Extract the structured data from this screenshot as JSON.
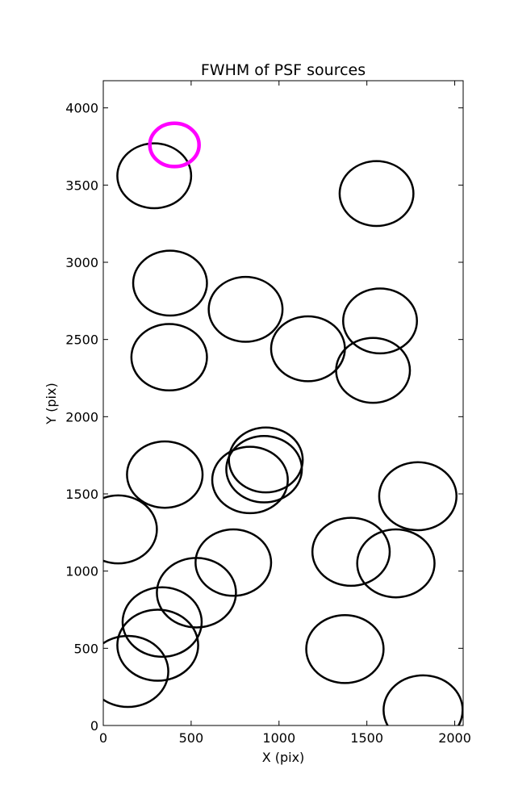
{
  "chart_data": {
    "type": "scatter",
    "title": "FWHM of PSF sources",
    "xlabel": "X (pix)",
    "ylabel": "Y (pix)",
    "xlim": [
      0,
      2048
    ],
    "ylim": [
      0,
      4176
    ],
    "xticks": [
      0,
      500,
      1000,
      1500,
      2000
    ],
    "yticks": [
      0,
      500,
      1000,
      1500,
      2000,
      2500,
      3000,
      3500,
      4000
    ],
    "grid": false,
    "series": [
      {
        "marker": "circle",
        "color": "#000000",
        "points": [
          {
            "x": 290,
            "y": 3560,
            "r": 210
          },
          {
            "x": 1555,
            "y": 3445,
            "r": 210
          },
          {
            "x": 380,
            "y": 2865,
            "r": 210
          },
          {
            "x": 810,
            "y": 2695,
            "r": 210
          },
          {
            "x": 1575,
            "y": 2620,
            "r": 210
          },
          {
            "x": 1165,
            "y": 2440,
            "r": 210
          },
          {
            "x": 375,
            "y": 2385,
            "r": 215
          },
          {
            "x": 1535,
            "y": 2300,
            "r": 210
          },
          {
            "x": 925,
            "y": 1720,
            "r": 210
          },
          {
            "x": 915,
            "y": 1660,
            "r": 215
          },
          {
            "x": 835,
            "y": 1590,
            "r": 215
          },
          {
            "x": 350,
            "y": 1625,
            "r": 215
          },
          {
            "x": 1790,
            "y": 1485,
            "r": 220
          },
          {
            "x": 85,
            "y": 1270,
            "r": 220
          },
          {
            "x": 1410,
            "y": 1125,
            "r": 220
          },
          {
            "x": 1665,
            "y": 1050,
            "r": 220
          },
          {
            "x": 740,
            "y": 1055,
            "r": 215
          },
          {
            "x": 530,
            "y": 860,
            "r": 225
          },
          {
            "x": 335,
            "y": 670,
            "r": 225
          },
          {
            "x": 310,
            "y": 520,
            "r": 230
          },
          {
            "x": 1375,
            "y": 495,
            "r": 220
          },
          {
            "x": 140,
            "y": 350,
            "r": 230
          },
          {
            "x": 1820,
            "y": 100,
            "r": 225
          }
        ]
      },
      {
        "marker": "circle",
        "color": "#ff00ff",
        "points": [
          {
            "x": 405,
            "y": 3760,
            "r": 140
          }
        ]
      }
    ]
  }
}
